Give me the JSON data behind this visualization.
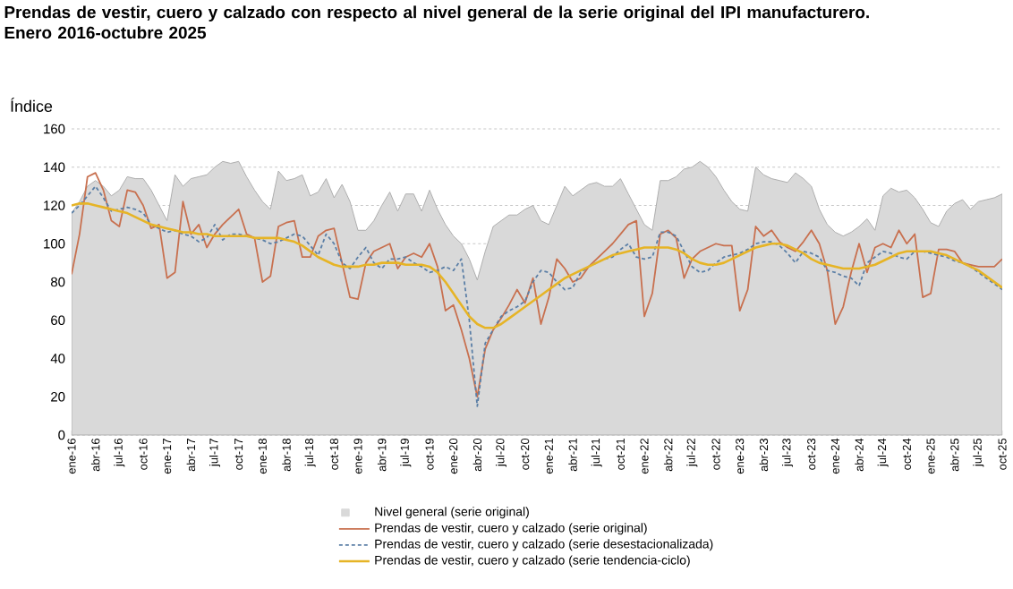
{
  "chart_data": {
    "type": "line",
    "title": "Prendas de vestir, cuero y calzado con respecto al nivel general de la serie original del IPI manufacturero.",
    "subtitle": "Enero 2016-octubre 2025",
    "ylabel": "Índice",
    "categories": [
      "ene-16",
      null,
      null,
      "abr-16",
      null,
      null,
      "jul-16",
      null,
      null,
      "oct-16",
      null,
      null,
      "ene-17",
      null,
      null,
      "abr-17",
      null,
      null,
      "jul-17",
      null,
      null,
      "oct-17",
      null,
      null,
      "ene-18",
      null,
      null,
      "abr-18",
      null,
      null,
      "jul-18",
      null,
      null,
      "oct-18",
      null,
      null,
      "ene-19",
      null,
      null,
      "abr-19",
      null,
      null,
      "jul-19",
      null,
      null,
      "oct-19",
      null,
      null,
      "ene-20",
      null,
      null,
      "abr-20",
      null,
      null,
      "jul-20",
      null,
      null,
      "oct-20",
      null,
      null,
      "ene-21",
      null,
      null,
      "abr-21",
      null,
      null,
      "jul-21",
      null,
      null,
      "oct-21",
      null,
      null,
      "ene-22",
      null,
      null,
      "abr-22",
      null,
      null,
      "jul-22",
      null,
      null,
      "oct-22",
      null,
      null,
      "ene-23",
      null,
      null,
      "abr-23",
      null,
      null,
      "jul-23",
      null,
      null,
      "oct-23",
      null,
      null,
      "ene-24",
      null,
      null,
      "abr-24",
      null,
      null,
      "jul-24",
      null,
      null,
      "oct-24",
      null,
      null,
      "ene-25",
      null,
      null,
      "abr-25",
      null,
      null,
      "jul-25",
      null,
      null,
      "oct-25"
    ],
    "series": [
      {
        "name": "Nivel general (serie original)",
        "type": "area",
        "color": "#d9d9d9",
        "values": [
          116,
          122,
          130,
          133,
          130,
          125,
          128,
          135,
          134,
          134,
          128,
          120,
          112,
          136,
          130,
          134,
          135,
          136,
          140,
          143,
          142,
          143,
          135,
          128,
          122,
          118,
          138,
          133,
          134,
          136,
          125,
          127,
          134,
          124,
          131,
          122,
          107,
          107,
          112,
          120,
          127,
          117,
          126,
          126,
          117,
          128,
          118,
          110,
          104,
          100,
          92,
          81,
          96,
          109,
          112,
          115,
          115,
          118,
          120,
          112,
          110,
          120,
          130,
          125,
          128,
          131,
          132,
          130,
          130,
          134,
          126,
          118,
          110,
          107,
          133,
          133,
          135,
          139,
          140,
          143,
          140,
          135,
          128,
          122,
          118,
          117,
          140,
          136,
          134,
          133,
          132,
          137,
          134,
          130,
          118,
          110,
          106,
          104,
          106,
          109,
          113,
          107,
          125,
          129,
          127,
          128,
          124,
          118,
          111,
          109,
          117,
          121,
          123,
          118,
          122,
          123,
          124,
          126
        ]
      },
      {
        "name": "Prendas de vestir, cuero y calzado (serie original)",
        "color": "#c8704f",
        "values": [
          84,
          105,
          135,
          137,
          128,
          112,
          109,
          128,
          127,
          120,
          108,
          110,
          82,
          85,
          122,
          105,
          110,
          98,
          105,
          110,
          114,
          118,
          105,
          103,
          80,
          83,
          109,
          111,
          112,
          93,
          93,
          104,
          107,
          108,
          90,
          72,
          71,
          90,
          96,
          98,
          100,
          87,
          93,
          95,
          93,
          100,
          88,
          65,
          68,
          55,
          40,
          20,
          45,
          55,
          61,
          68,
          76,
          69,
          82,
          58,
          72,
          92,
          87,
          80,
          82,
          88,
          92,
          96,
          100,
          105,
          110,
          112,
          62,
          74,
          105,
          107,
          103,
          82,
          92,
          96,
          98,
          100,
          99,
          99,
          65,
          76,
          109,
          104,
          107,
          101,
          98,
          96,
          101,
          107,
          100,
          86,
          58,
          67,
          85,
          100,
          85,
          98,
          100,
          98,
          107,
          100,
          105,
          72,
          74,
          97,
          97,
          96,
          90,
          89,
          88,
          88,
          88,
          92
        ]
      },
      {
        "name": "Prendas de vestir, cuero y calzado (serie desestacionalizada)",
        "color": "#5b7fa6",
        "line_style": "dashed",
        "values": [
          116,
          120,
          125,
          130,
          124,
          117,
          118,
          119,
          118,
          116,
          110,
          108,
          106,
          107,
          105,
          104,
          101,
          103,
          110,
          102,
          105,
          105,
          104,
          103,
          102,
          100,
          101,
          103,
          105,
          104,
          99,
          94,
          105,
          100,
          90,
          87,
          93,
          98,
          90,
          87,
          92,
          92,
          93,
          90,
          88,
          85,
          86,
          88,
          86,
          92,
          60,
          15,
          48,
          55,
          62,
          65,
          67,
          70,
          80,
          86,
          85,
          80,
          76,
          77,
          85,
          88,
          90,
          92,
          93,
          97,
          100,
          93,
          92,
          93,
          106,
          106,
          104,
          96,
          88,
          85,
          86,
          90,
          93,
          94,
          95,
          97,
          100,
          101,
          101,
          99,
          95,
          90,
          96,
          95,
          93,
          86,
          85,
          83,
          82,
          78,
          90,
          93,
          96,
          95,
          93,
          92,
          96,
          96,
          95,
          94,
          93,
          91,
          90,
          88,
          85,
          82,
          79,
          76
        ]
      },
      {
        "name": "Prendas de vestir, cuero y calzado (serie tendencia-ciclo)",
        "color": "#e6b426",
        "values": [
          120,
          121,
          121,
          120,
          119,
          118,
          117,
          116,
          114,
          112,
          110,
          109,
          108,
          107,
          106,
          106,
          105,
          105,
          104,
          104,
          104,
          104,
          104,
          103,
          103,
          103,
          103,
          102,
          101,
          99,
          96,
          93,
          91,
          89,
          88,
          88,
          88,
          89,
          89,
          90,
          90,
          90,
          89,
          89,
          89,
          88,
          85,
          80,
          74,
          68,
          62,
          58,
          56,
          56,
          58,
          61,
          64,
          67,
          70,
          73,
          76,
          79,
          82,
          84,
          86,
          88,
          90,
          92,
          94,
          95,
          96,
          97,
          98,
          98,
          98,
          98,
          97,
          95,
          92,
          90,
          89,
          89,
          90,
          92,
          94,
          96,
          98,
          99,
          100,
          100,
          99,
          97,
          95,
          92,
          90,
          89,
          88,
          87,
          87,
          87,
          88,
          89,
          91,
          93,
          95,
          96,
          96,
          96,
          96,
          95,
          94,
          92,
          90,
          88,
          86,
          83,
          80,
          77
        ]
      }
    ],
    "ylim": [
      0,
      160
    ],
    "yticks": [
      0,
      20,
      40,
      60,
      80,
      100,
      120,
      140,
      160
    ],
    "grid": "y",
    "legend": "bottom",
    "marker": "none"
  }
}
